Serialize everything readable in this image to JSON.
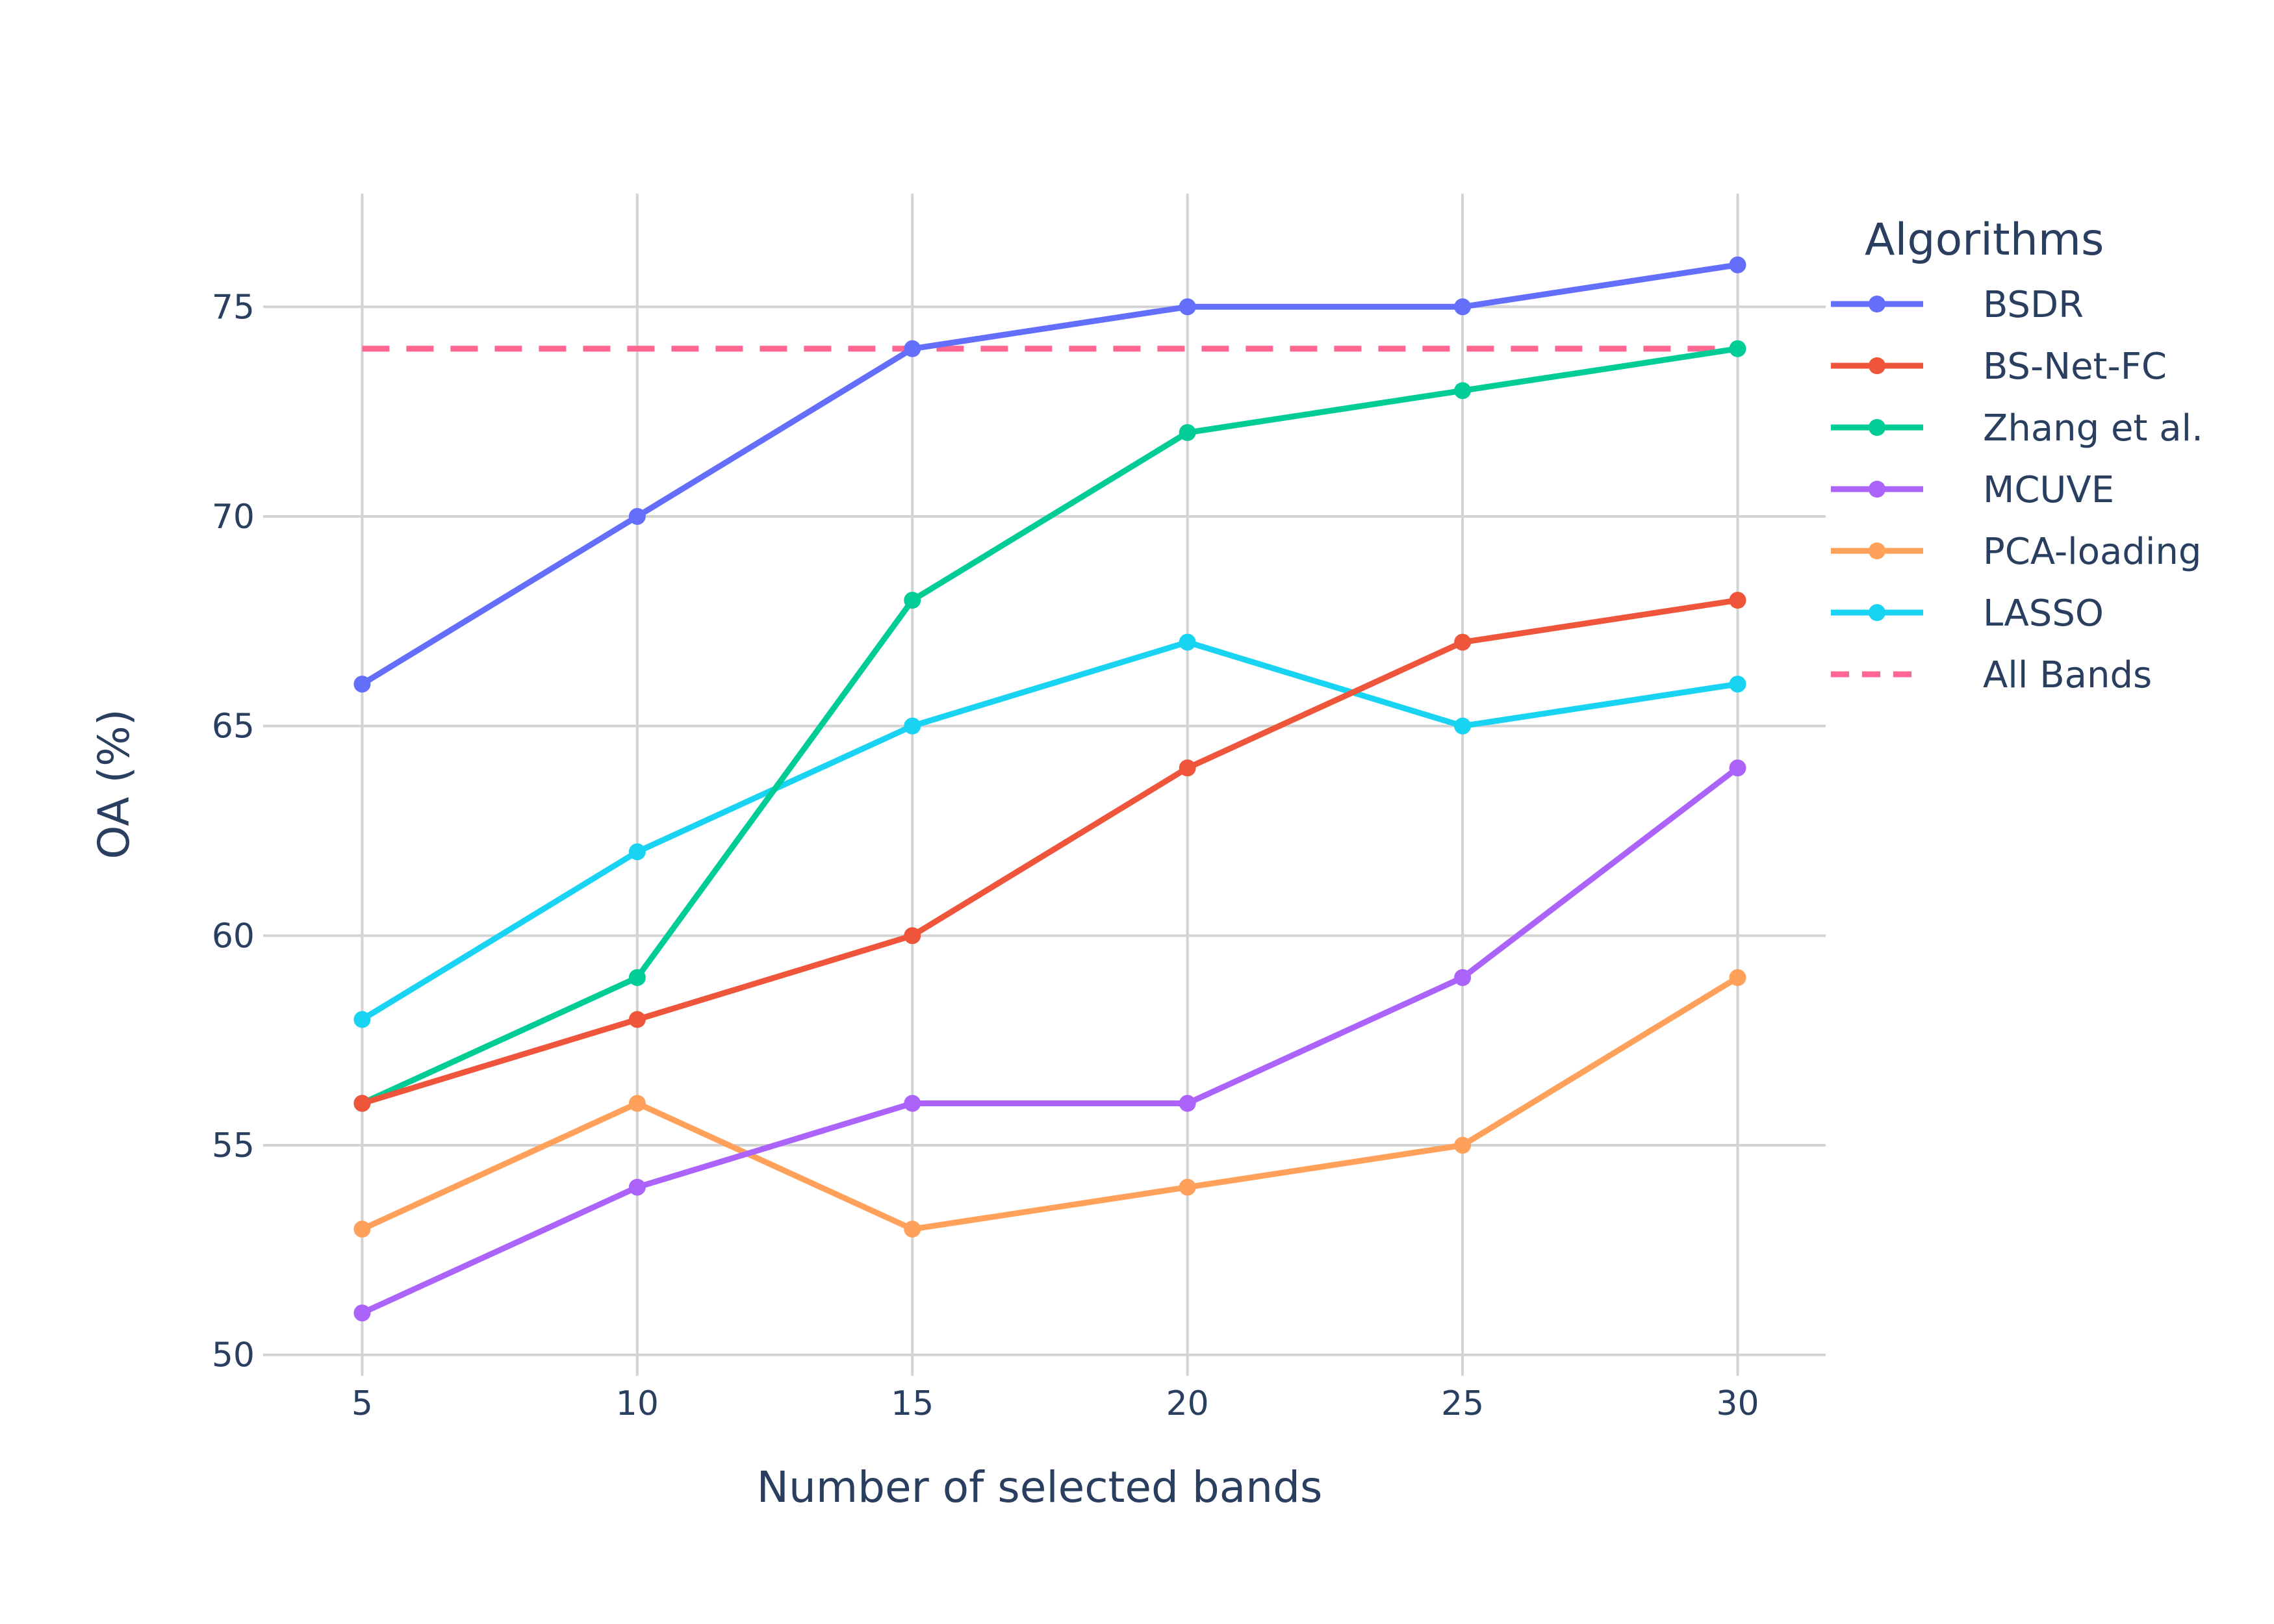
{
  "chart_data": {
    "type": "line",
    "xlabel": "Number of selected bands",
    "ylabel": "OA (%)",
    "x": [
      5,
      10,
      15,
      20,
      25,
      30
    ],
    "x_ticks": [
      "5",
      "10",
      "15",
      "20",
      "25",
      "30"
    ],
    "y_ticks": [
      "50",
      "55",
      "60",
      "65",
      "70",
      "75"
    ],
    "xlim": [
      3.2,
      31.6
    ],
    "ylim": [
      49.5,
      77.7
    ],
    "grid": true,
    "legend": {
      "title": "Algorithms",
      "placement": "right"
    },
    "series": [
      {
        "name": "BSDR",
        "values": [
          66,
          70,
          74,
          75,
          75,
          76
        ],
        "color": "#636efa",
        "dash": false,
        "markers": true
      },
      {
        "name": "BS-Net-FC",
        "values": [
          56,
          58,
          60,
          64,
          67,
          68
        ],
        "color": "#ef553b",
        "dash": false,
        "markers": true
      },
      {
        "name": "Zhang et al.",
        "values": [
          56,
          59,
          68,
          72,
          73,
          74
        ],
        "color": "#00cc96",
        "dash": false,
        "markers": true
      },
      {
        "name": "MCUVE",
        "values": [
          51,
          54,
          56,
          56,
          59,
          64
        ],
        "color": "#ab63fa",
        "dash": false,
        "markers": true
      },
      {
        "name": "PCA-loading",
        "values": [
          53,
          56,
          53,
          54,
          55,
          59
        ],
        "color": "#ffa15a",
        "dash": false,
        "markers": true
      },
      {
        "name": "LASSO",
        "values": [
          58,
          62,
          65,
          67,
          65,
          66
        ],
        "color": "#19d3f3",
        "dash": false,
        "markers": true
      },
      {
        "name": "All Bands",
        "values": [
          74,
          74,
          74,
          74,
          74,
          74
        ],
        "color": "#ff6692",
        "dash": true,
        "markers": false
      }
    ]
  }
}
